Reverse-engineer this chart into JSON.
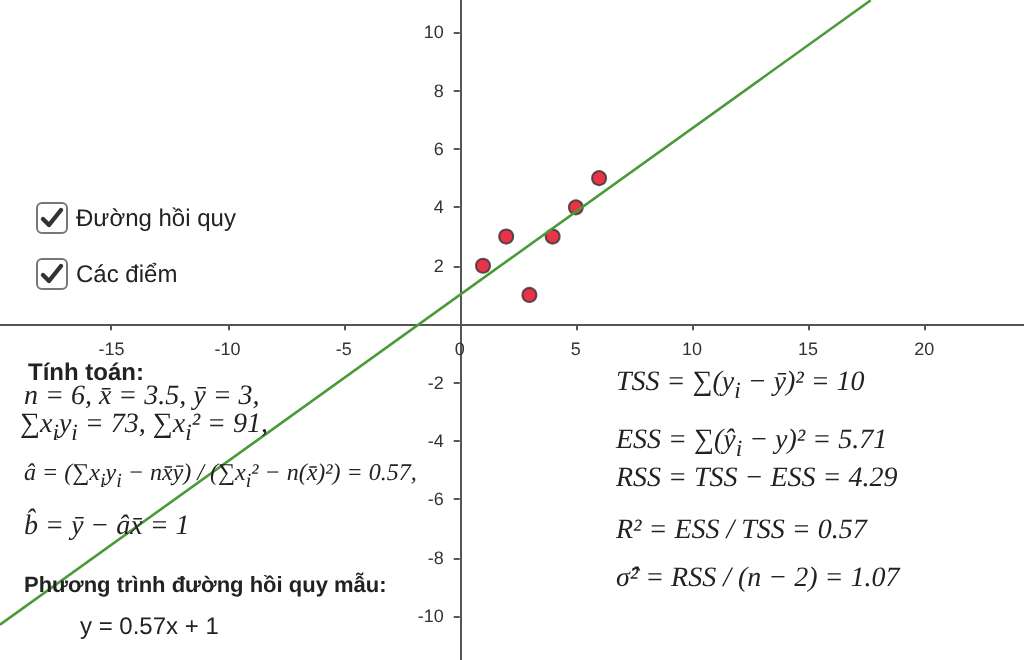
{
  "chart_data": {
    "type": "scatter",
    "xlim": [
      -19.8,
      24.3
    ],
    "ylim": [
      -11.5,
      11.1
    ],
    "xticks": [
      -15,
      -10,
      -5,
      0,
      5,
      10,
      15,
      20
    ],
    "yticks": [
      -10,
      -8,
      -6,
      -4,
      -2,
      2,
      4,
      6,
      8,
      10
    ],
    "grid": false,
    "marker": "circle",
    "series": [
      {
        "type": "scatter",
        "color": "#e3001b",
        "x": [
          1,
          2,
          3,
          4,
          5,
          6
        ],
        "values": [
          2,
          3,
          1,
          3,
          4,
          5
        ]
      },
      {
        "type": "line",
        "color": "#4a9a3a",
        "marker": "none",
        "line_style": "solid",
        "x": [
          -19.8,
          17.7
        ],
        "values": [
          -10.29,
          11.09
        ]
      }
    ],
    "annotations": [
      "Đường hồi quy",
      "Các điểm",
      "Tính toán:",
      "n = 6, x̄ = 3.5, ȳ = 3,",
      "∑x$_{i}$y$_{i}$ = 73, ∑x$_{i}$² = 91,",
      "â = (∑x$_{i}$y$_{i}$ − nx̄ȳ) / (∑x$_{i}$² − n(x̄)²) = 0.57,",
      "b̂ = ȳ − âx̄ = 1",
      "Phương trình đường hồi quy mẫu:",
      "y = 0.57x + 1",
      "TSS = ∑(y$_{i}$ − ȳ)² = 10",
      "ESS = ∑(ŷ$_{i}$ − y)² = 5.71",
      "RSS = TSS − ESS = 4.29",
      "R² = ESS / TSS = 0.57",
      "σ̂² = RSS / (n − 2) = 1.07"
    ]
  }
}
